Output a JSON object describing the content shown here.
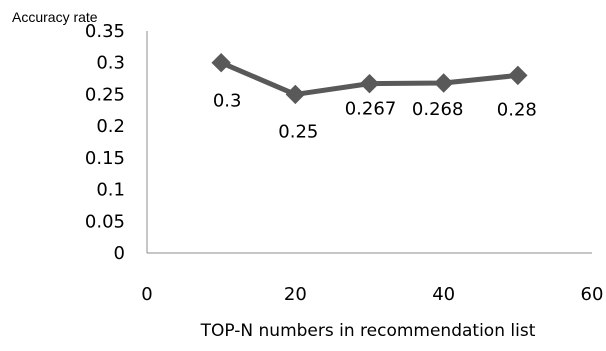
{
  "chart_data": {
    "type": "line",
    "title": "",
    "xlabel": "TOP-N numbers in recommendation list",
    "ylabel": "Accuracy rate",
    "xlim": [
      0,
      60
    ],
    "ylim": [
      0,
      0.35
    ],
    "x_ticks": [
      "0",
      "20",
      "40",
      "60"
    ],
    "y_ticks": [
      "0",
      "0.05",
      "0.1",
      "0.15",
      "0.2",
      "0.25",
      "0.3",
      "0.35"
    ],
    "grid": false,
    "legend": "none",
    "series": [
      {
        "x": [
          10,
          20,
          30,
          40,
          50
        ],
        "values": [
          0.3,
          0.25,
          0.267,
          0.268,
          0.28
        ],
        "labels": [
          "0.3",
          "0.25",
          "0.267",
          "0.268",
          "0.28"
        ],
        "color": "#595959",
        "marker": "diamond"
      }
    ]
  }
}
